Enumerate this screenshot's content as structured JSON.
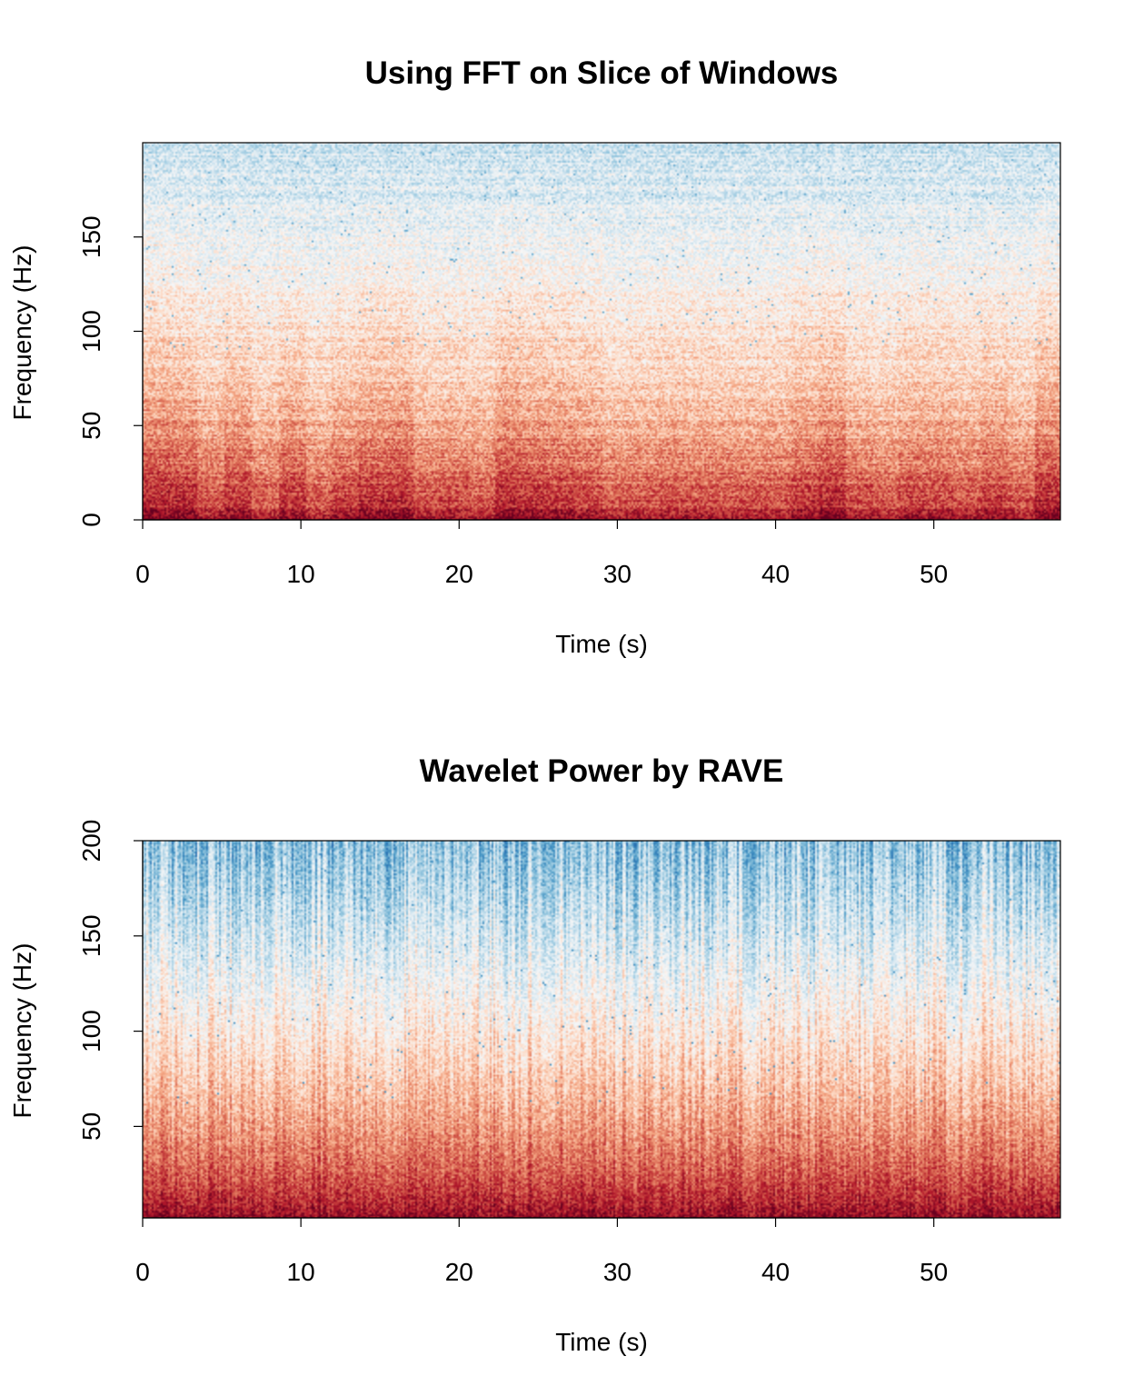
{
  "chart_data": [
    {
      "type": "heatmap",
      "title": "Using FFT on Slice of Windows",
      "xlabel": "Time (s)",
      "ylabel": "Frequency (Hz)",
      "xlim": [
        0,
        58
      ],
      "ylim": [
        0,
        200
      ],
      "x_ticks": [
        {
          "value": 0,
          "label": "0"
        },
        {
          "value": 10,
          "label": "10"
        },
        {
          "value": 20,
          "label": "20"
        },
        {
          "value": 30,
          "label": "30"
        },
        {
          "value": 40,
          "label": "40"
        },
        {
          "value": 50,
          "label": "50"
        }
      ],
      "y_ticks": [
        {
          "value": 0,
          "label": "0"
        },
        {
          "value": 50,
          "label": "50"
        },
        {
          "value": 100,
          "label": "100"
        },
        {
          "value": 150,
          "label": "150"
        }
      ],
      "colormap": [
        "#67001f",
        "#b2182b",
        "#d6604d",
        "#f4a582",
        "#fddbc7",
        "#f7f7f7",
        "#d1e5f0",
        "#92c5de",
        "#4393c3",
        "#2166ac"
      ],
      "grid": false,
      "legend": "none"
    },
    {
      "type": "heatmap",
      "title": "Wavelet Power by RAVE",
      "xlabel": "Time (s)",
      "ylabel": "Frequency (Hz)",
      "xlim": [
        0,
        58
      ],
      "ylim": [
        2,
        200
      ],
      "x_ticks": [
        {
          "value": 0,
          "label": "0"
        },
        {
          "value": 10,
          "label": "10"
        },
        {
          "value": 20,
          "label": "20"
        },
        {
          "value": 30,
          "label": "30"
        },
        {
          "value": 40,
          "label": "40"
        },
        {
          "value": 50,
          "label": "50"
        }
      ],
      "y_ticks": [
        {
          "value": 50,
          "label": "50"
        },
        {
          "value": 100,
          "label": "100"
        },
        {
          "value": 150,
          "label": "150"
        },
        {
          "value": 200,
          "label": "200"
        }
      ],
      "colormap": [
        "#67001f",
        "#b2182b",
        "#d6604d",
        "#f4a582",
        "#fddbc7",
        "#f7f7f7",
        "#d1e5f0",
        "#92c5de",
        "#4393c3",
        "#2166ac"
      ],
      "grid": false,
      "legend": "none"
    }
  ]
}
